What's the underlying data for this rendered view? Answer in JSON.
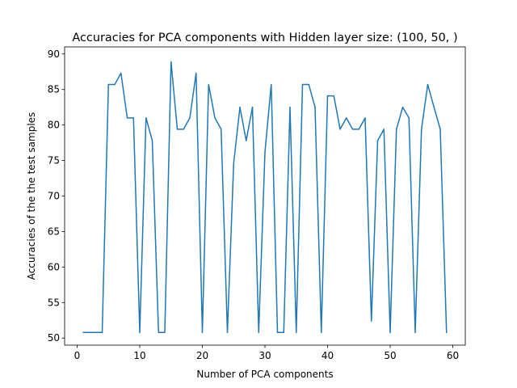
{
  "chart_data": {
    "type": "line",
    "title": "Accuracies for PCA components with Hidden layer size: (100, 50, )",
    "xlabel": "Number of PCA components",
    "ylabel": "Accuracies of the the test samples",
    "xlim": [
      -2,
      62
    ],
    "ylim": [
      49,
      91
    ],
    "xticks": [
      0,
      10,
      20,
      30,
      40,
      50,
      60
    ],
    "yticks": [
      50,
      55,
      60,
      65,
      70,
      75,
      80,
      85,
      90
    ],
    "grid": false,
    "line_color": "#1f77b4",
    "series": [
      {
        "x": [
          1,
          2,
          3,
          4,
          5,
          6,
          7,
          8,
          9,
          10,
          11,
          12,
          13,
          14,
          15,
          16,
          17,
          18,
          19,
          20,
          21,
          22,
          23,
          24,
          25,
          26,
          27,
          28,
          29,
          30,
          31,
          32,
          33,
          34,
          35,
          36,
          37,
          38,
          39,
          40,
          41,
          42,
          43,
          44,
          45,
          46,
          47,
          48,
          49,
          50,
          51,
          52,
          53,
          54,
          55,
          56,
          57,
          58,
          59
        ],
        "values": [
          50.8,
          50.8,
          50.8,
          50.8,
          85.7,
          85.7,
          87.3,
          81.0,
          81.0,
          50.8,
          81.0,
          77.8,
          50.8,
          50.8,
          88.9,
          79.4,
          79.4,
          81.0,
          87.3,
          50.8,
          85.7,
          81.0,
          79.4,
          50.8,
          74.6,
          82.5,
          77.8,
          82.5,
          50.8,
          76.2,
          85.7,
          50.8,
          50.8,
          82.5,
          50.8,
          85.7,
          85.7,
          82.5,
          50.8,
          84.1,
          84.1,
          79.4,
          81.0,
          79.4,
          79.4,
          81.0,
          52.4,
          77.8,
          79.4,
          50.8,
          79.4,
          82.5,
          81.0,
          50.8,
          79.4,
          85.7,
          82.5,
          79.4,
          50.8
        ]
      }
    ]
  }
}
